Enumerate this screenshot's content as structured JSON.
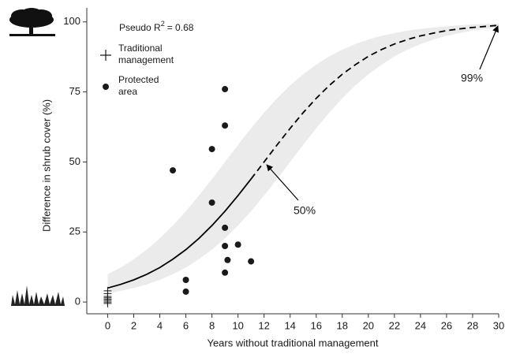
{
  "chart_data": {
    "type": "scatter",
    "annotation_r2": {
      "prefix": "Pseudo  R",
      "sup": "2",
      "suffix": "= 0.68"
    },
    "annotations": [
      "50%",
      "99%"
    ],
    "x_label": "Years without traditional management",
    "y_label": "Difference in shrub cover (%)",
    "xlim": [
      -1.6,
      30
    ],
    "ylim": [
      -4.2,
      105
    ],
    "xticks": [
      0,
      2,
      4,
      6,
      8,
      10,
      12,
      14,
      16,
      18,
      20,
      22,
      24,
      26,
      28,
      30
    ],
    "yticks": [
      0,
      25,
      50,
      75,
      100
    ],
    "series": [
      {
        "name": "Traditional management",
        "marker": "cross",
        "color": "#1a1a1a",
        "x": [
          0,
          0,
          0,
          0,
          0,
          0,
          0,
          0
        ],
        "values": [
          0,
          1,
          2,
          3,
          4,
          1.5,
          0.5,
          -0.5
        ]
      },
      {
        "name": "Protected area",
        "marker": "dot",
        "color": "#1a1a1a",
        "x": [
          5,
          6,
          6,
          8,
          8,
          9,
          9,
          9,
          9,
          9,
          9.2,
          10,
          11
        ],
        "values": [
          47,
          7.9,
          3.7,
          54.6,
          35.5,
          76,
          63,
          26.5,
          20,
          10.5,
          15,
          20.5,
          14.5
        ]
      }
    ],
    "fit": {
      "color": "#000000",
      "x": [
        0,
        1,
        2,
        3,
        4,
        5,
        6,
        7,
        8,
        9,
        10,
        11
      ],
      "values": [
        5.0,
        6.3,
        7.9,
        9.9,
        12.3,
        15.3,
        18.7,
        22.7,
        27.3,
        32.4,
        38.0,
        43.9
      ]
    },
    "extrapolation": {
      "color": "#000000",
      "x": [
        11,
        12,
        13,
        14,
        15,
        16,
        17,
        18,
        19,
        20,
        21,
        22,
        23,
        24,
        25,
        26,
        27,
        28,
        29,
        30
      ],
      "values": [
        43.9,
        50,
        56.1,
        62.0,
        67.6,
        72.7,
        77.3,
        81.3,
        84.7,
        87.7,
        90.1,
        92.1,
        93.7,
        95.0,
        96.0,
        96.9,
        97.5,
        98.0,
        98.4,
        98.8
      ]
    },
    "band": {
      "color": "#ebebeb",
      "x": [
        0,
        1,
        2,
        3,
        4,
        5,
        6,
        7,
        8,
        9,
        10,
        11,
        12,
        13,
        14,
        15,
        16,
        17,
        18,
        19,
        20,
        21,
        22,
        23,
        24,
        25,
        26,
        27,
        28,
        29,
        30
      ],
      "lower": [
        3.1,
        4.0,
        5.0,
        6.3,
        7.9,
        9.9,
        12.3,
        15.3,
        18.7,
        22.7,
        27.3,
        32.4,
        38.0,
        43.9,
        50,
        56.1,
        62.0,
        67.6,
        72.7,
        77.3,
        81.3,
        84.7,
        87.7,
        90.1,
        92.1,
        93.7,
        95.0,
        96.0,
        96.9,
        97.5,
        98.0
      ],
      "upper": [
        9.9,
        12.3,
        15.3,
        18.7,
        22.7,
        27.3,
        32.4,
        38.0,
        43.9,
        50,
        56.1,
        62.0,
        67.6,
        72.7,
        77.3,
        81.3,
        84.7,
        87.7,
        90.1,
        92.1,
        93.7,
        95.0,
        96.0,
        96.9,
        97.5,
        98.0,
        98.4,
        98.8,
        99.1,
        99.3,
        99.4
      ]
    }
  }
}
